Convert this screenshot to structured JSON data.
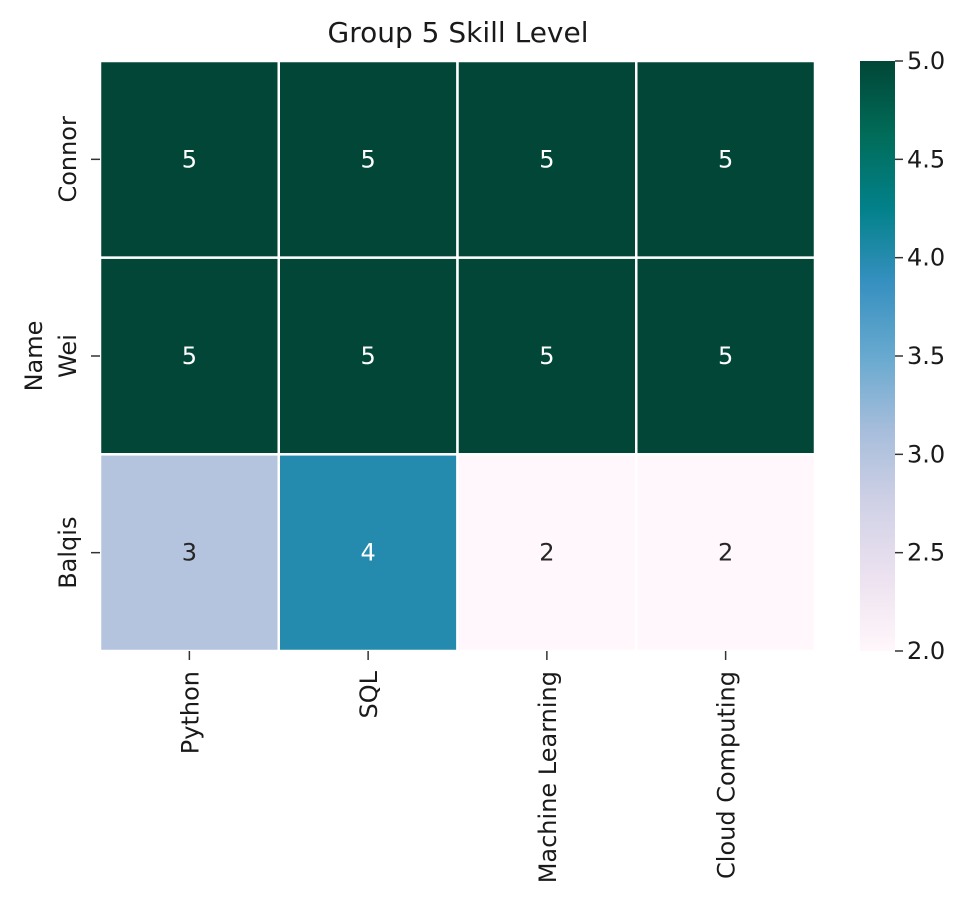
{
  "chart_data": {
    "type": "heatmap",
    "title": "Group 5 Skill Level",
    "ylabel": "Name",
    "xlabel": "",
    "rows": [
      "Connor",
      "Wei",
      "Balqis"
    ],
    "columns": [
      "Python",
      "SQL",
      "Machine Learning",
      "Cloud Computing"
    ],
    "values": [
      [
        5,
        5,
        5,
        5
      ],
      [
        5,
        5,
        5,
        5
      ],
      [
        3,
        4,
        2,
        2
      ]
    ],
    "colorbar": {
      "min": 2.0,
      "max": 5.0,
      "ticks": [
        "2.0",
        "2.5",
        "3.0",
        "3.5",
        "4.0",
        "4.5",
        "5.0"
      ],
      "colormap": "PuBuGn",
      "colors": [
        "#fff7fb",
        "#ece2f0",
        "#d0d1e6",
        "#a6bddb",
        "#67a9cf",
        "#3690c0",
        "#02818a",
        "#016c59",
        "#014636"
      ]
    },
    "grid": false,
    "cell_border_color": "#ffffff"
  }
}
